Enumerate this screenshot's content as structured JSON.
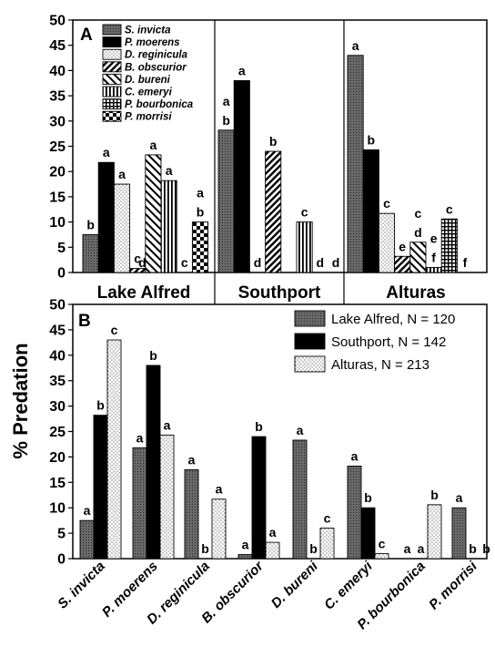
{
  "ylabel": "% Predation",
  "panel_a_label": "A",
  "panel_b_label": "B",
  "colors": {
    "S. invicta": "#707070",
    "P. moerens": "#000000",
    "D. reginicula": "#f2f2f2",
    "B. obscurior": "#ffffff",
    "D. bureni": "#ffffff",
    "C. emeryi": "#ffffff",
    "P. bourbonica": "#ffffff",
    "P. morrisi": "#ffffff"
  },
  "chart_data": [
    {
      "type": "bar",
      "panel": "A",
      "ylim": [
        0,
        50
      ],
      "yticks": [
        0,
        5,
        10,
        15,
        20,
        25,
        30,
        35,
        40,
        45,
        50
      ],
      "groups": [
        "Lake Alfred",
        "Southport",
        "Alturas"
      ],
      "series": [
        {
          "name": "S. invicta",
          "values": [
            7.5,
            28.2,
            43.0
          ],
          "letters": [
            "b",
            "a b",
            "a"
          ]
        },
        {
          "name": "P. moerens",
          "values": [
            21.8,
            38.0,
            24.3
          ],
          "letters": [
            "a",
            "a",
            "b"
          ]
        },
        {
          "name": "D. reginicula",
          "values": [
            17.5,
            0,
            11.7
          ],
          "letters": [
            "a",
            "d",
            "c"
          ]
        },
        {
          "name": "B. obscurior",
          "values": [
            0.8,
            24.0,
            3.2
          ],
          "letters": [
            "c",
            "b",
            "e"
          ]
        },
        {
          "name": "D. bureni",
          "values": [
            23.3,
            0,
            6.0
          ],
          "letters": [
            "a",
            "",
            "c d"
          ]
        },
        {
          "name": "C. emeryi",
          "values": [
            18.2,
            10.0,
            1.0
          ],
          "letters": [
            "a",
            "c",
            "e f"
          ]
        },
        {
          "name": "P. bourbonica",
          "values": [
            0,
            0,
            10.6
          ],
          "letters": [
            "c",
            "d",
            "c"
          ]
        },
        {
          "name": "P. morrisi",
          "values": [
            10.0,
            0,
            0
          ],
          "letters": [
            "a b",
            "d",
            "f"
          ]
        }
      ],
      "annotations": [
        {
          "group": 0,
          "slot": 3.3,
          "text": "d",
          "note": ""
        }
      ]
    },
    {
      "type": "bar",
      "panel": "B",
      "ylim": [
        0,
        50
      ],
      "yticks": [
        0,
        5,
        10,
        15,
        20,
        25,
        30,
        35,
        40,
        45,
        50
      ],
      "categories": [
        "S. invicta",
        "P. moerens",
        "D. reginicula",
        "B. obscurior",
        "D. bureni",
        "C. emeryi",
        "P. bourbonica",
        "P. morrisi"
      ],
      "series": [
        {
          "name": "Lake Alfred, N = 120",
          "values": [
            7.5,
            21.8,
            17.5,
            0.8,
            23.3,
            18.2,
            0,
            10.0
          ],
          "letters": [
            "a",
            "a",
            "a",
            "a",
            "a",
            "a",
            "a",
            "a"
          ]
        },
        {
          "name": "Southport, N = 142",
          "values": [
            28.2,
            38.0,
            0,
            24.0,
            0,
            10.0,
            0,
            0
          ],
          "letters": [
            "b",
            "b",
            "b",
            "b",
            "b",
            "b",
            "a",
            "b"
          ]
        },
        {
          "name": "Alturas, N = 213",
          "values": [
            43.0,
            24.3,
            11.7,
            3.2,
            6.0,
            1.0,
            10.6,
            0
          ],
          "letters": [
            "c",
            "a",
            "a",
            "a",
            "c",
            "c",
            "b",
            "b"
          ]
        }
      ]
    }
  ]
}
